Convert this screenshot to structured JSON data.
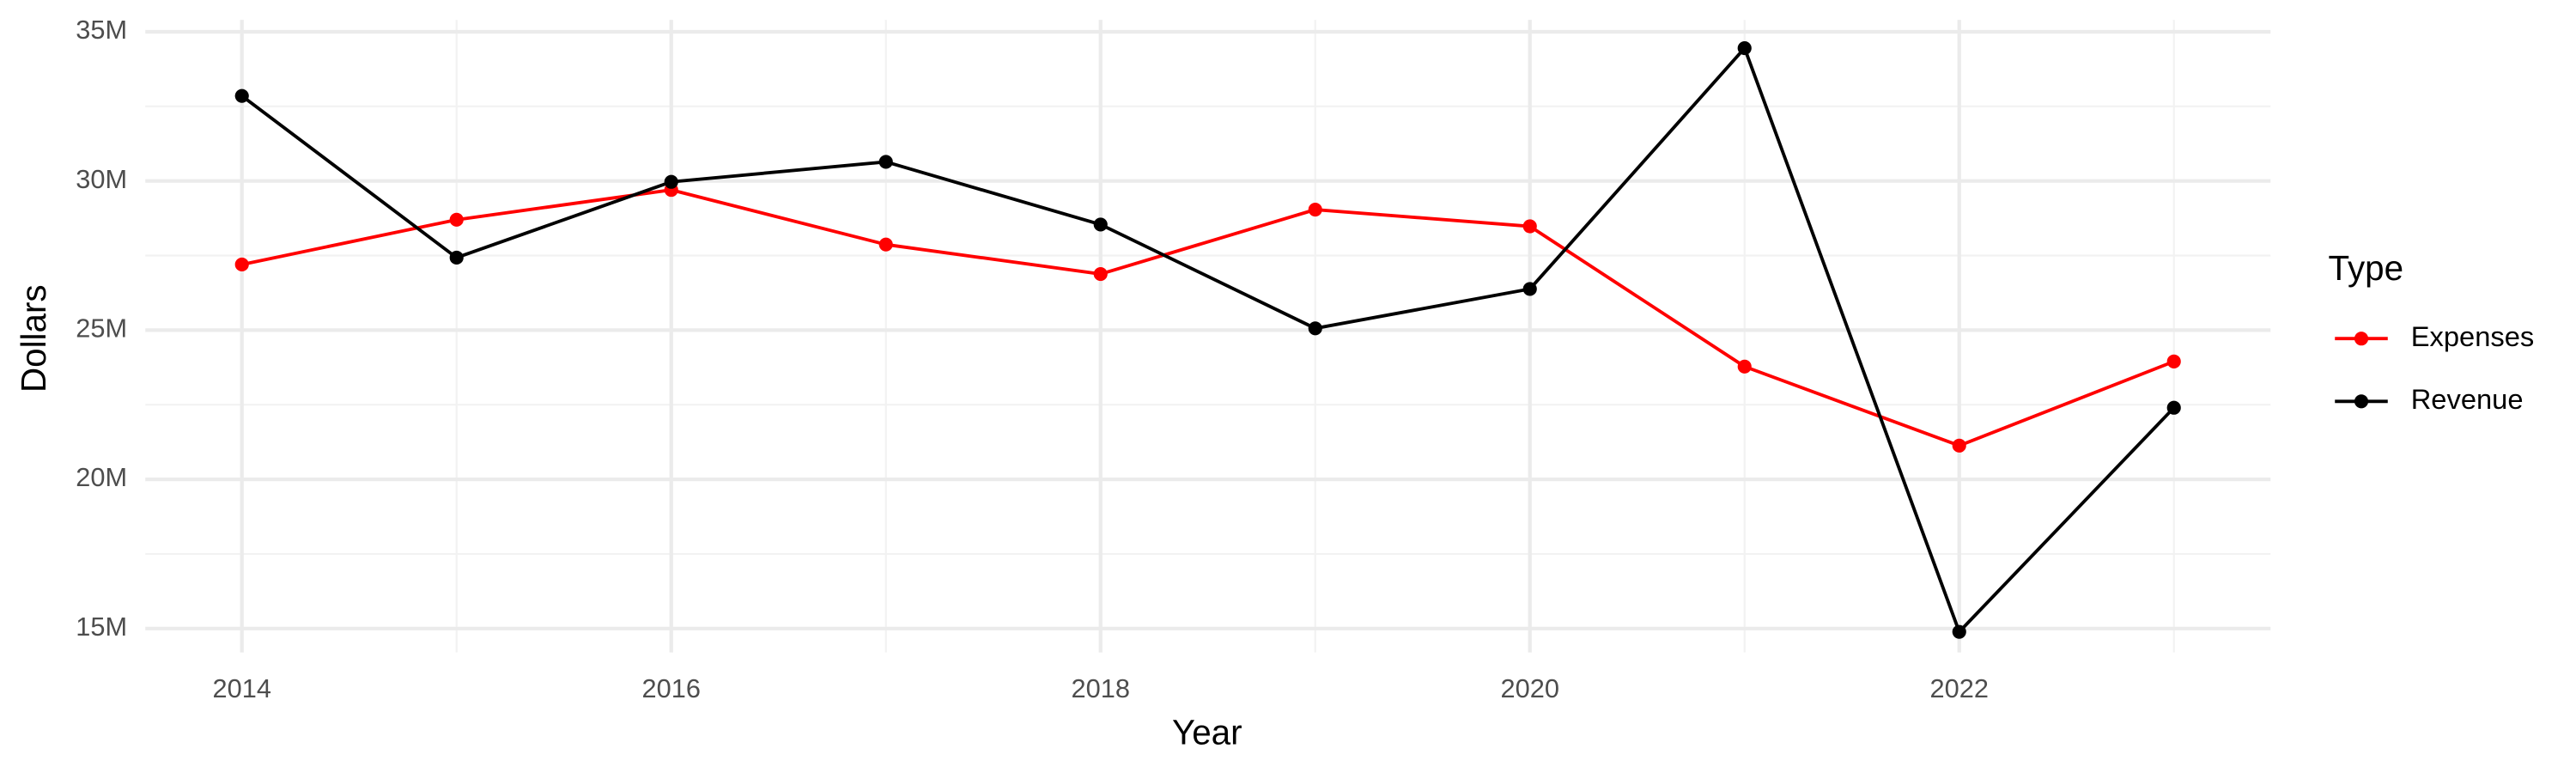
{
  "chart_data": {
    "type": "line",
    "x_label": "Year",
    "y_label": "Dollars",
    "legend_title": "Type",
    "x": [
      2014,
      2015,
      2016,
      2017,
      2018,
      2019,
      2020,
      2021,
      2022,
      2023
    ],
    "series": [
      {
        "name": "Expenses",
        "color": "#ff0000",
        "values": [
          27200000,
          28700000,
          29700000,
          27870000,
          26880000,
          29040000,
          28480000,
          23780000,
          21130000,
          23950000
        ]
      },
      {
        "name": "Revenue",
        "color": "#000000",
        "values": [
          32850000,
          27430000,
          29970000,
          30640000,
          28540000,
          25060000,
          26380000,
          34450000,
          14890000,
          22400000
        ]
      }
    ],
    "xlim": [
      2013.55,
      2023.45
    ],
    "xticks": [
      2014,
      2016,
      2018,
      2020,
      2022
    ],
    "ylim": [
      14200000,
      35400000
    ],
    "yticks": [
      {
        "value": 15000000,
        "label": "15M"
      },
      {
        "value": 20000000,
        "label": "20M"
      },
      {
        "value": 25000000,
        "label": "25M"
      },
      {
        "value": 30000000,
        "label": "30M"
      },
      {
        "value": 35000000,
        "label": "35M"
      }
    ],
    "grid": true,
    "legend": "right"
  }
}
